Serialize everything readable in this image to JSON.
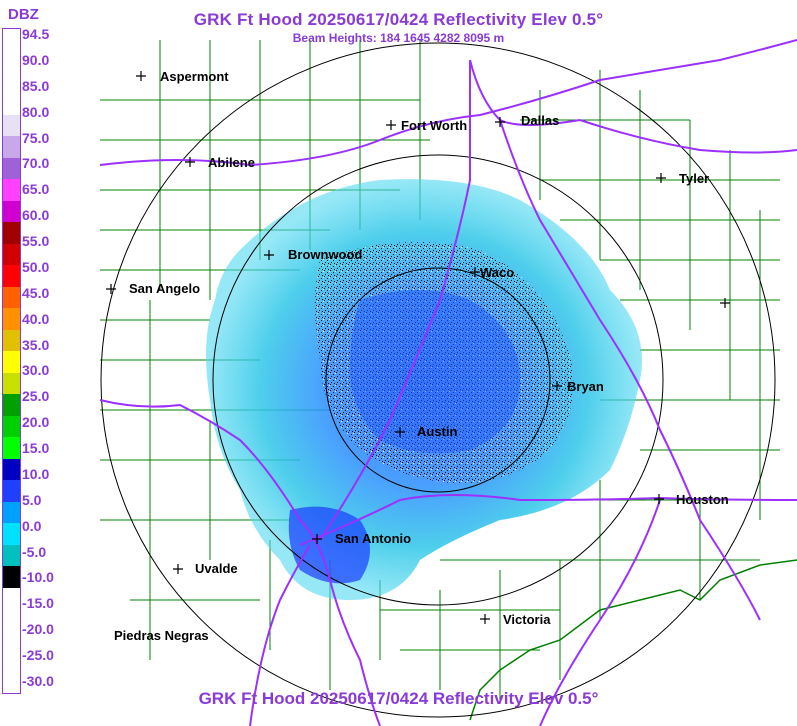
{
  "header": {
    "title": "GRK Ft Hood 20250617/0424 Reflectivity Elev 0.5°",
    "subtitle": "Beam Heights: 184 1645 4282 8095 m",
    "bottom_title": "GRK Ft Hood 20250617/0424 Reflectivity Elev 0.5°"
  },
  "legend": {
    "label": "DBZ",
    "ticks": [
      "94.5",
      "90.0",
      "85.0",
      "80.0",
      "75.0",
      "70.0",
      "65.0",
      "60.0",
      "55.0",
      "50.0",
      "45.0",
      "40.0",
      "35.0",
      "30.0",
      "25.0",
      "20.0",
      "15.0",
      "10.0",
      "5.0",
      "0.0",
      "-5.0",
      "-10.0",
      "-15.0",
      "-20.0",
      "-25.0",
      "-30.0"
    ],
    "colors": [
      "#ffffff",
      "#ffffff",
      "#ffffff",
      "#ffffff",
      "#e8e0f4",
      "#c8a8e8",
      "#a060d8",
      "#ff40ff",
      "#d000d0",
      "#a00000",
      "#d00000",
      "#ff0000",
      "#ff6000",
      "#ff9000",
      "#e0c000",
      "#ffff00",
      "#c8e000",
      "#00a000",
      "#00d000",
      "#00ff00",
      "#0000c0",
      "#2040ff",
      "#00a0ff",
      "#00e0ff",
      "#00c0c0",
      "#000000",
      "#ffffff",
      "#ffffff",
      "#ffffff",
      "#ffffff",
      "#ffffff"
    ]
  },
  "colors": {
    "accent": "#8a3ad6",
    "roads": "#9b30ff",
    "counties": "#008000",
    "rings": "#000000"
  },
  "cities": [
    {
      "name": "Aspermont"
    },
    {
      "name": "Fort Worth"
    },
    {
      "name": "Dallas"
    },
    {
      "name": "Abilene"
    },
    {
      "name": "Tyler"
    },
    {
      "name": "Brownwood"
    },
    {
      "name": "Waco"
    },
    {
      "name": "San Angelo"
    },
    {
      "name": "Bryan"
    },
    {
      "name": "Austin"
    },
    {
      "name": "Houston"
    },
    {
      "name": "San Antonio"
    },
    {
      "name": "Uvalde"
    },
    {
      "name": "Victoria"
    },
    {
      "name": "Piedras Negras"
    },
    {
      "name": ""
    }
  ],
  "radar": {
    "site": "GRK",
    "ring_count": 3
  }
}
